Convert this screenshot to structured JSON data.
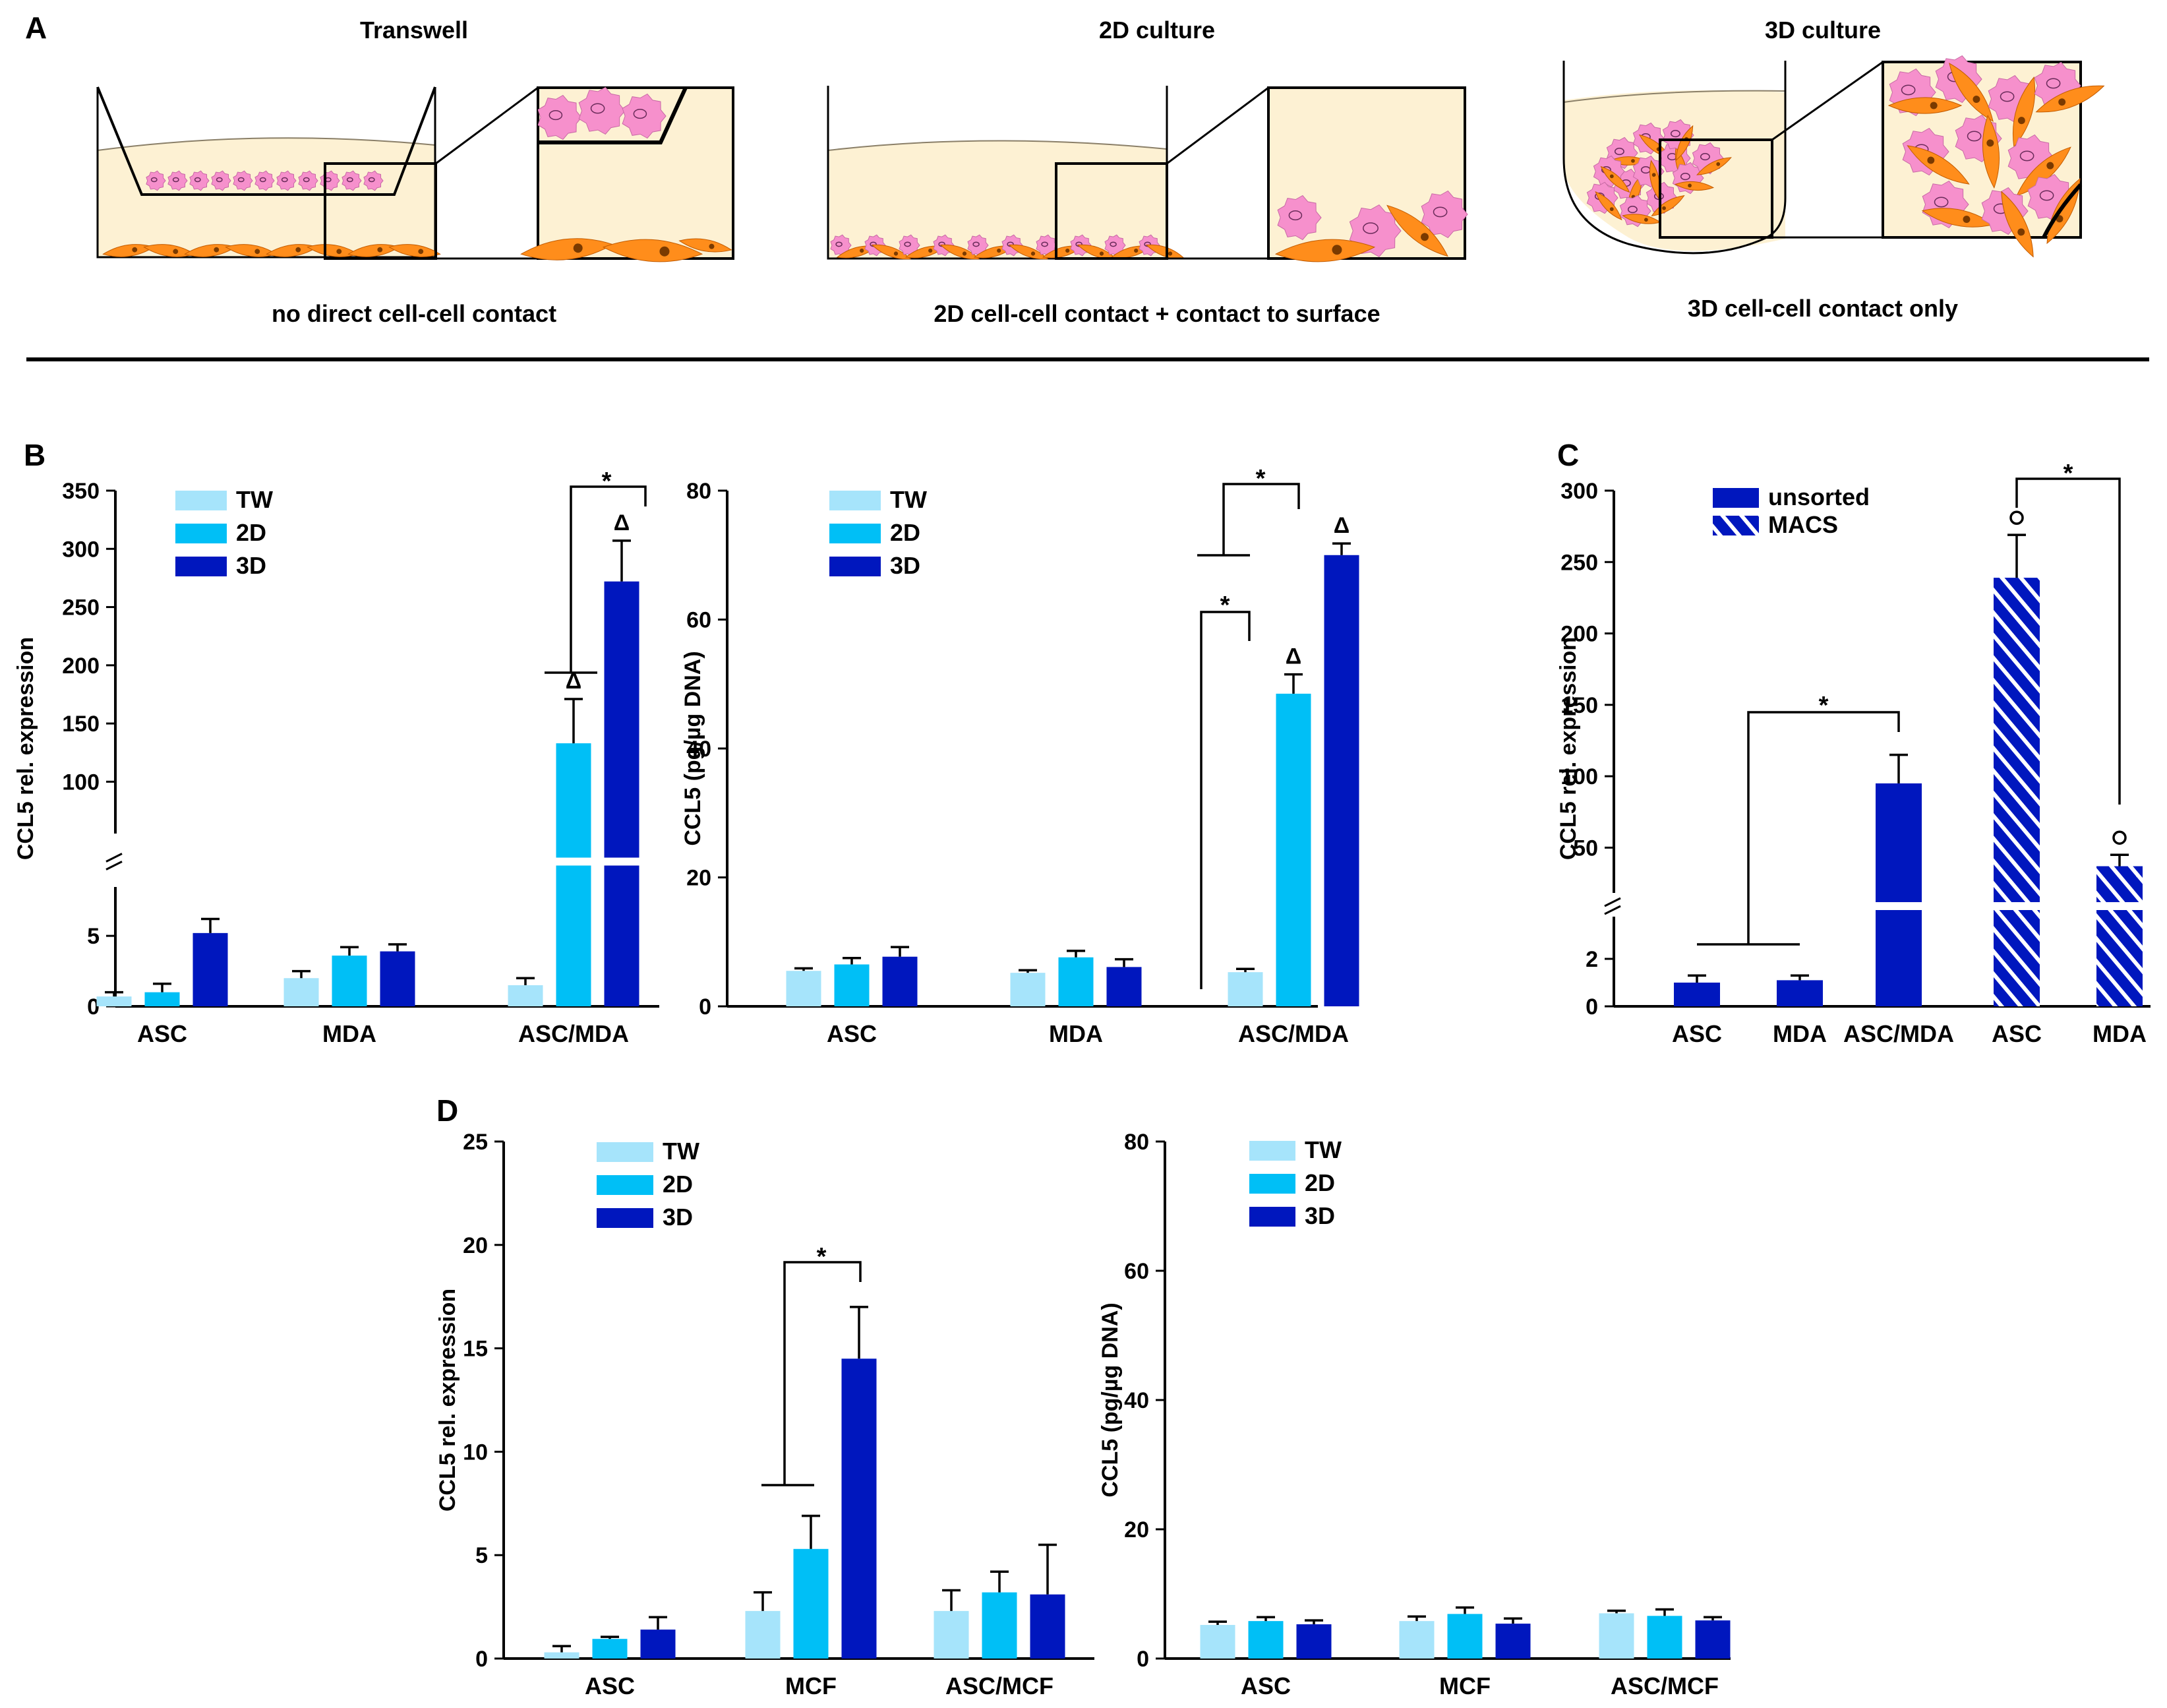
{
  "colors": {
    "tw": "#a6e4fb",
    "d2": "#00bff6",
    "d3": "#0017be",
    "medium": "#fdf1d3",
    "asc_cell": "#ff8d1b",
    "mda_cell": "#f690cc",
    "axis": "#000000"
  },
  "panel_a": {
    "label": "A",
    "transwell": {
      "title": "Transwell",
      "caption": "no direct cell-cell contact"
    },
    "culture_2d": {
      "title": "2D culture",
      "caption": "2D cell-cell contact + contact to surface"
    },
    "culture_3d": {
      "title": "3D culture",
      "caption": "3D cell-cell contact only"
    }
  },
  "panel_b": {
    "label": "B"
  },
  "panel_c": {
    "label": "C"
  },
  "panel_d": {
    "label": "D"
  },
  "chart_data": [
    {
      "id": "B1",
      "type": "bar",
      "broken_axis": true,
      "ylabel": "CCL5 rel. expression",
      "categories": [
        "ASC",
        "MDA",
        "ASC/MDA"
      ],
      "legend": [
        "TW",
        "2D",
        "3D"
      ],
      "lower_ticks": [
        "0",
        "5"
      ],
      "upper_ticks": [
        "100",
        "150",
        "200",
        "250",
        "300",
        "350"
      ],
      "lower_range": [
        0,
        8
      ],
      "upper_range": [
        60,
        350
      ],
      "series": [
        {
          "name": "TW",
          "values": [
            0.7,
            2.0,
            1.5
          ],
          "errors": [
            0.3,
            0.5,
            0.5
          ]
        },
        {
          "name": "2D",
          "values": [
            1.0,
            3.6,
            133
          ],
          "errors": [
            0.6,
            0.6,
            38
          ]
        },
        {
          "name": "3D",
          "values": [
            5.2,
            3.9,
            272
          ],
          "errors": [
            1.0,
            0.5,
            35
          ]
        }
      ],
      "annotations": [
        {
          "text": "*",
          "group": 2,
          "from": "2D,TW",
          "to": "3D"
        },
        {
          "text": "Δ",
          "group": 2,
          "series": "2D"
        },
        {
          "text": "Δ",
          "group": 2,
          "series": "3D"
        }
      ]
    },
    {
      "id": "B2",
      "type": "bar",
      "ylabel": "CCL5 (pg/µg DNA)",
      "categories": [
        "ASC",
        "MDA",
        "ASC/MDA"
      ],
      "legend": [
        "TW",
        "2D",
        "3D"
      ],
      "ticks": [
        "0",
        "20",
        "40",
        "60",
        "80"
      ],
      "ylim": [
        0,
        80
      ],
      "series": [
        {
          "name": "TW",
          "values": [
            5.5,
            5.2,
            5.3
          ],
          "errors": [
            0.4,
            0.4,
            0.5
          ]
        },
        {
          "name": "2D",
          "values": [
            6.5,
            7.6,
            48.5
          ],
          "errors": [
            1.0,
            1.0,
            3.0
          ]
        },
        {
          "name": "3D",
          "values": [
            7.7,
            6.1,
            70.0
          ],
          "errors": [
            1.5,
            1.2,
            1.8
          ]
        }
      ],
      "annotations": [
        {
          "text": "*",
          "group": 2,
          "from": "TW",
          "to": "2D"
        },
        {
          "text": "*",
          "group": 2,
          "from": "TW,2D",
          "to": "3D"
        },
        {
          "text": "Δ",
          "group": 2,
          "series": "2D"
        },
        {
          "text": "Δ",
          "group": 2,
          "series": "3D"
        }
      ]
    },
    {
      "id": "C",
      "type": "bar",
      "broken_axis": true,
      "ylabel": "CCL5 rel. expression",
      "categories": [
        "ASC",
        "MDA",
        "ASC/MDA",
        "ASC",
        "MDA"
      ],
      "legend": [
        "unsorted",
        "MACS"
      ],
      "lower_ticks": [
        "2"
      ],
      "upper_ticks": [
        "50",
        "100",
        "150",
        "200",
        "250",
        "300"
      ],
      "lower_range": [
        0,
        3.5
      ],
      "upper_range": [
        22,
        300
      ],
      "series": [
        {
          "name": "unsorted",
          "values": [
            1.0,
            1.1,
            95,
            null,
            null
          ],
          "errors": [
            0.3,
            0.2,
            20,
            null,
            null
          ]
        },
        {
          "name": "MACS",
          "values": [
            null,
            null,
            null,
            239,
            37
          ],
          "errors": [
            null,
            null,
            null,
            30,
            8
          ]
        }
      ],
      "annotations": [
        {
          "text": "*",
          "from": "ASC,MDA",
          "to": "ASC/MDA"
        },
        {
          "text": "*",
          "from": "ASC (MACS)",
          "to": "MDA (MACS)"
        },
        {
          "text": "°",
          "bar": "ASC (MACS)"
        },
        {
          "text": "°",
          "bar": "MDA (MACS)"
        }
      ]
    },
    {
      "id": "D1",
      "type": "bar",
      "ylabel": "CCL5 rel. expression",
      "categories": [
        "ASC",
        "MCF",
        "ASC/MCF"
      ],
      "legend": [
        "TW",
        "2D",
        "3D"
      ],
      "ticks": [
        "0",
        "5",
        "10",
        "15",
        "20",
        "25"
      ],
      "ylim": [
        0,
        25
      ],
      "series": [
        {
          "name": "TW",
          "values": [
            0.3,
            2.3,
            2.3
          ],
          "errors": [
            0.3,
            0.9,
            1.0
          ]
        },
        {
          "name": "2D",
          "values": [
            0.95,
            5.3,
            3.2
          ],
          "errors": [
            0.1,
            1.6,
            1.0
          ]
        },
        {
          "name": "3D",
          "values": [
            1.4,
            14.5,
            3.1
          ],
          "errors": [
            0.6,
            2.5,
            2.4
          ]
        }
      ],
      "annotations": [
        {
          "text": "*",
          "group": 1,
          "from": "TW,2D",
          "to": "3D"
        }
      ]
    },
    {
      "id": "D2",
      "type": "bar",
      "ylabel": "CCL5 (pg/µg DNA)",
      "categories": [
        "ASC",
        "MCF",
        "ASC/MCF"
      ],
      "legend": [
        "TW",
        "2D",
        "3D"
      ],
      "ticks": [
        "0",
        "20",
        "40",
        "60",
        "80"
      ],
      "ylim": [
        0,
        80
      ],
      "series": [
        {
          "name": "TW",
          "values": [
            5.2,
            5.8,
            7.0
          ],
          "errors": [
            0.5,
            0.7,
            0.4
          ]
        },
        {
          "name": "2D",
          "values": [
            5.8,
            6.9,
            6.6
          ],
          "errors": [
            0.6,
            1.0,
            1.0
          ]
        },
        {
          "name": "3D",
          "values": [
            5.3,
            5.4,
            5.9
          ],
          "errors": [
            0.6,
            0.8,
            0.5
          ]
        }
      ]
    }
  ]
}
